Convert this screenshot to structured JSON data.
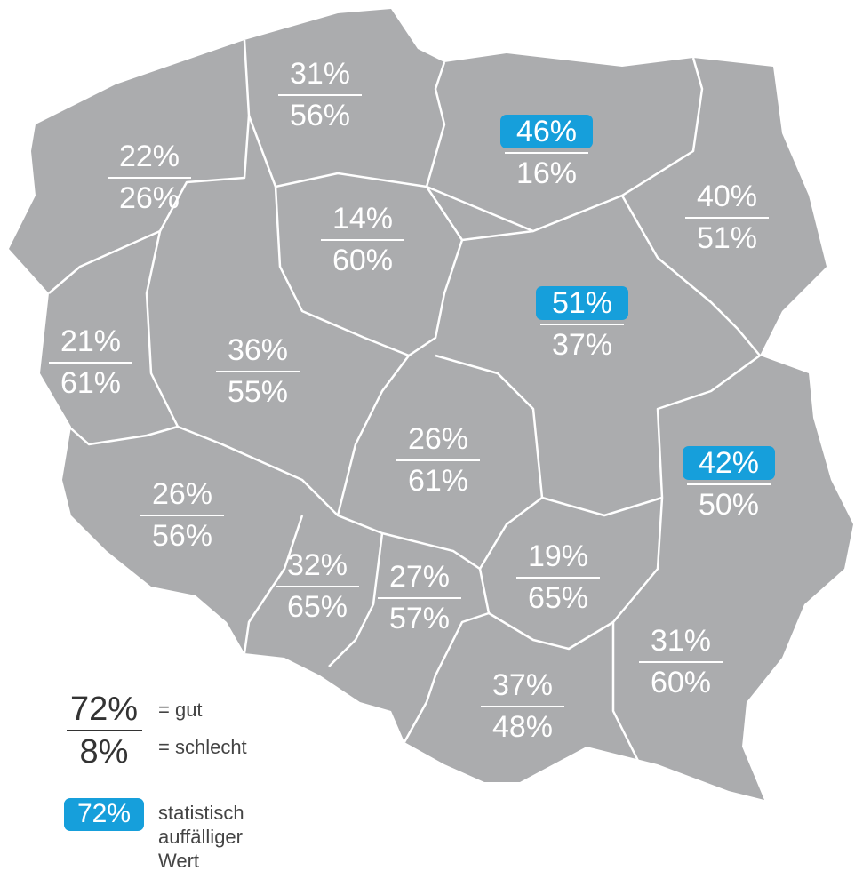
{
  "regions": [
    {
      "good": "31%",
      "bad": "56%",
      "highlight": false
    },
    {
      "good": "46%",
      "bad": "16%",
      "highlight": true
    },
    {
      "good": "22%",
      "bad": "26%",
      "highlight": false
    },
    {
      "good": "14%",
      "bad": "60%",
      "highlight": false
    },
    {
      "good": "40%",
      "bad": "51%",
      "highlight": false
    },
    {
      "good": "51%",
      "bad": "37%",
      "highlight": true
    },
    {
      "good": "21%",
      "bad": "61%",
      "highlight": false
    },
    {
      "good": "36%",
      "bad": "55%",
      "highlight": false
    },
    {
      "good": "26%",
      "bad": "61%",
      "highlight": false
    },
    {
      "good": "42%",
      "bad": "50%",
      "highlight": true
    },
    {
      "good": "26%",
      "bad": "56%",
      "highlight": false
    },
    {
      "good": "32%",
      "bad": "65%",
      "highlight": false
    },
    {
      "good": "27%",
      "bad": "57%",
      "highlight": false
    },
    {
      "good": "19%",
      "bad": "65%",
      "highlight": false
    },
    {
      "good": "31%",
      "bad": "60%",
      "highlight": false
    },
    {
      "good": "37%",
      "bad": "48%",
      "highlight": false
    }
  ],
  "legend": {
    "good_example": "72%",
    "bad_example": "8%",
    "good_label": "= gut",
    "bad_label": "= schlecht",
    "highlight_example": "72%",
    "highlight_label": [
      "statistisch",
      "auffälliger",
      "Wert"
    ]
  }
}
